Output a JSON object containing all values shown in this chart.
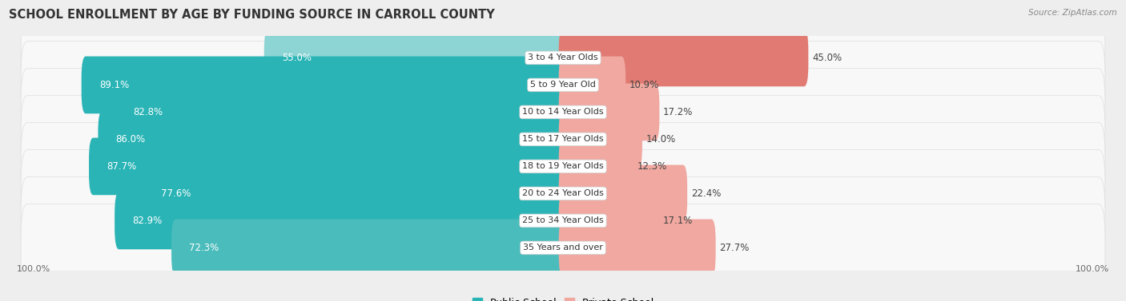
{
  "title": "SCHOOL ENROLLMENT BY AGE BY FUNDING SOURCE IN CARROLL COUNTY",
  "source": "Source: ZipAtlas.com",
  "categories": [
    "3 to 4 Year Olds",
    "5 to 9 Year Old",
    "10 to 14 Year Olds",
    "15 to 17 Year Olds",
    "18 to 19 Year Olds",
    "20 to 24 Year Olds",
    "25 to 34 Year Olds",
    "35 Years and over"
  ],
  "public_values": [
    55.0,
    89.1,
    82.8,
    86.0,
    87.7,
    77.6,
    82.9,
    72.3
  ],
  "private_values": [
    45.0,
    10.9,
    17.2,
    14.0,
    12.3,
    22.4,
    17.1,
    27.7
  ],
  "public_colors": [
    "#8dd4d4",
    "#2ab4b6",
    "#2ab4b6",
    "#2ab4b6",
    "#2ab4b6",
    "#2ab4b6",
    "#2ab4b6",
    "#4bbcbc"
  ],
  "private_colors": [
    "#e07a72",
    "#f0a8a0",
    "#f0a8a0",
    "#f0a8a0",
    "#f0a8a0",
    "#f0a8a0",
    "#f0a8a0",
    "#f0a8a0"
  ],
  "legend_public_color": "#2ab4b6",
  "legend_private_color": "#f0a8a0",
  "bg_color": "#eeeeee",
  "row_bg_color": "#f8f8f8",
  "row_border_color": "#dddddd",
  "title_fontsize": 10.5,
  "source_fontsize": 7.5,
  "bar_label_fontsize": 8.5,
  "category_fontsize": 8,
  "axis_label_fontsize": 8
}
